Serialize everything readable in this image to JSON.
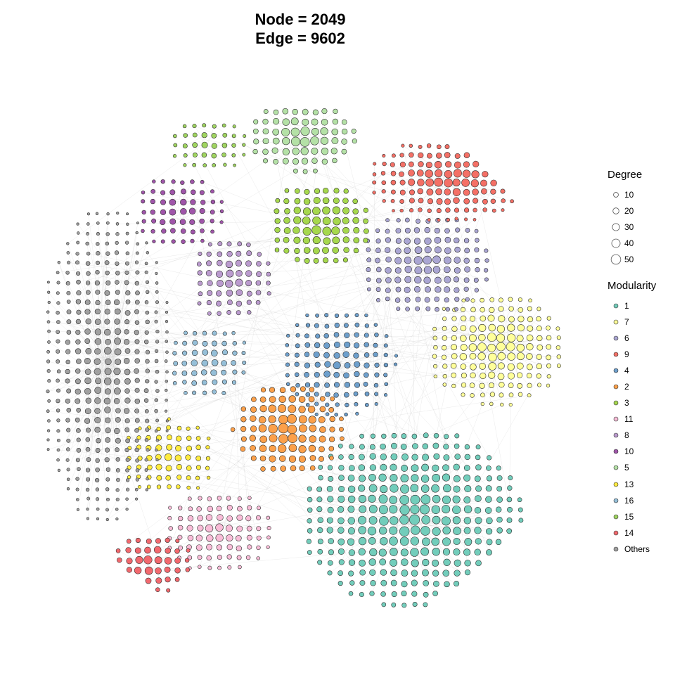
{
  "title": {
    "line1": "Node = 2049",
    "line2": "Edge = 9602"
  },
  "legend": {
    "degree_title": "Degree",
    "degree_items": [
      {
        "label": "10",
        "value": 10
      },
      {
        "label": "20",
        "value": 20
      },
      {
        "label": "30",
        "value": 30
      },
      {
        "label": "40",
        "value": 40
      },
      {
        "label": "50",
        "value": 50
      }
    ],
    "modularity_title": "Modularity",
    "modularity_items": [
      {
        "label": "1",
        "color": "#72cdbb"
      },
      {
        "label": "7",
        "color": "#ffff99"
      },
      {
        "label": "6",
        "color": "#aaa6d3"
      },
      {
        "label": "9",
        "color": "#f47066"
      },
      {
        "label": "4",
        "color": "#6d9fcc"
      },
      {
        "label": "2",
        "color": "#fca04a"
      },
      {
        "label": "3",
        "color": "#a6d84d"
      },
      {
        "label": "11",
        "color": "#f8bcd7"
      },
      {
        "label": "8",
        "color": "#bb9bcf"
      },
      {
        "label": "10",
        "color": "#9f55a9"
      },
      {
        "label": "5",
        "color": "#b4e1a6"
      },
      {
        "label": "13",
        "color": "#ffeb3e"
      },
      {
        "label": "16",
        "color": "#95bfd8"
      },
      {
        "label": "15",
        "color": "#9fd45f"
      },
      {
        "label": "14",
        "color": "#f2686d"
      },
      {
        "label": "Others",
        "color": "#a0a0a0"
      }
    ]
  }
}
